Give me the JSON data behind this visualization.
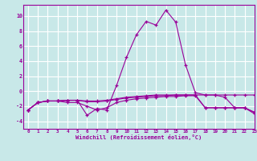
{
  "x": [
    0,
    1,
    2,
    3,
    4,
    5,
    6,
    7,
    8,
    9,
    10,
    11,
    12,
    13,
    14,
    15,
    16,
    17,
    18,
    19,
    20,
    21,
    22,
    23
  ],
  "line1": [
    -2.5,
    -1.5,
    -1.3,
    -1.3,
    -1.2,
    -1.2,
    -1.3,
    -1.3,
    -1.2,
    -1.0,
    -0.8,
    -0.7,
    -0.6,
    -0.5,
    -0.5,
    -0.5,
    -0.5,
    -0.5,
    -0.5,
    -0.5,
    -0.5,
    -0.5,
    -0.5,
    -0.5
  ],
  "line2": [
    -2.5,
    -1.5,
    -1.3,
    -1.3,
    -1.2,
    -1.2,
    -3.2,
    -2.3,
    -2.5,
    0.8,
    4.5,
    7.5,
    9.3,
    8.8,
    10.8,
    9.2,
    3.5,
    -0.2,
    -0.5,
    -0.5,
    -0.8,
    -2.2,
    -2.2,
    -3.0
  ],
  "line3": [
    -2.5,
    -1.5,
    -1.3,
    -1.3,
    -1.5,
    -1.5,
    -2.0,
    -2.5,
    -2.2,
    -1.5,
    -1.2,
    -1.0,
    -0.9,
    -0.8,
    -0.7,
    -0.7,
    -0.6,
    -0.6,
    -2.2,
    -2.2,
    -2.2,
    -2.2,
    -2.2,
    -2.8
  ],
  "line4": [
    -2.5,
    -1.5,
    -1.3,
    -1.3,
    -1.2,
    -1.2,
    -1.4,
    -1.4,
    -1.3,
    -1.1,
    -0.9,
    -0.8,
    -0.7,
    -0.6,
    -0.6,
    -0.5,
    -0.5,
    -0.5,
    -2.2,
    -2.2,
    -2.2,
    -2.2,
    -2.2,
    -2.8
  ],
  "line_color": "#990099",
  "background_color": "#c8e8e8",
  "grid_color": "#ffffff",
  "xlabel": "Windchill (Refroidissement éolien,°C)",
  "ylim": [
    -5,
    11.5
  ],
  "xlim": [
    -0.5,
    23
  ],
  "yticks": [
    -4,
    -2,
    0,
    2,
    4,
    6,
    8,
    10
  ],
  "xticks": [
    0,
    1,
    2,
    3,
    4,
    5,
    6,
    7,
    8,
    9,
    10,
    11,
    12,
    13,
    14,
    15,
    16,
    17,
    18,
    19,
    20,
    21,
    22,
    23
  ]
}
